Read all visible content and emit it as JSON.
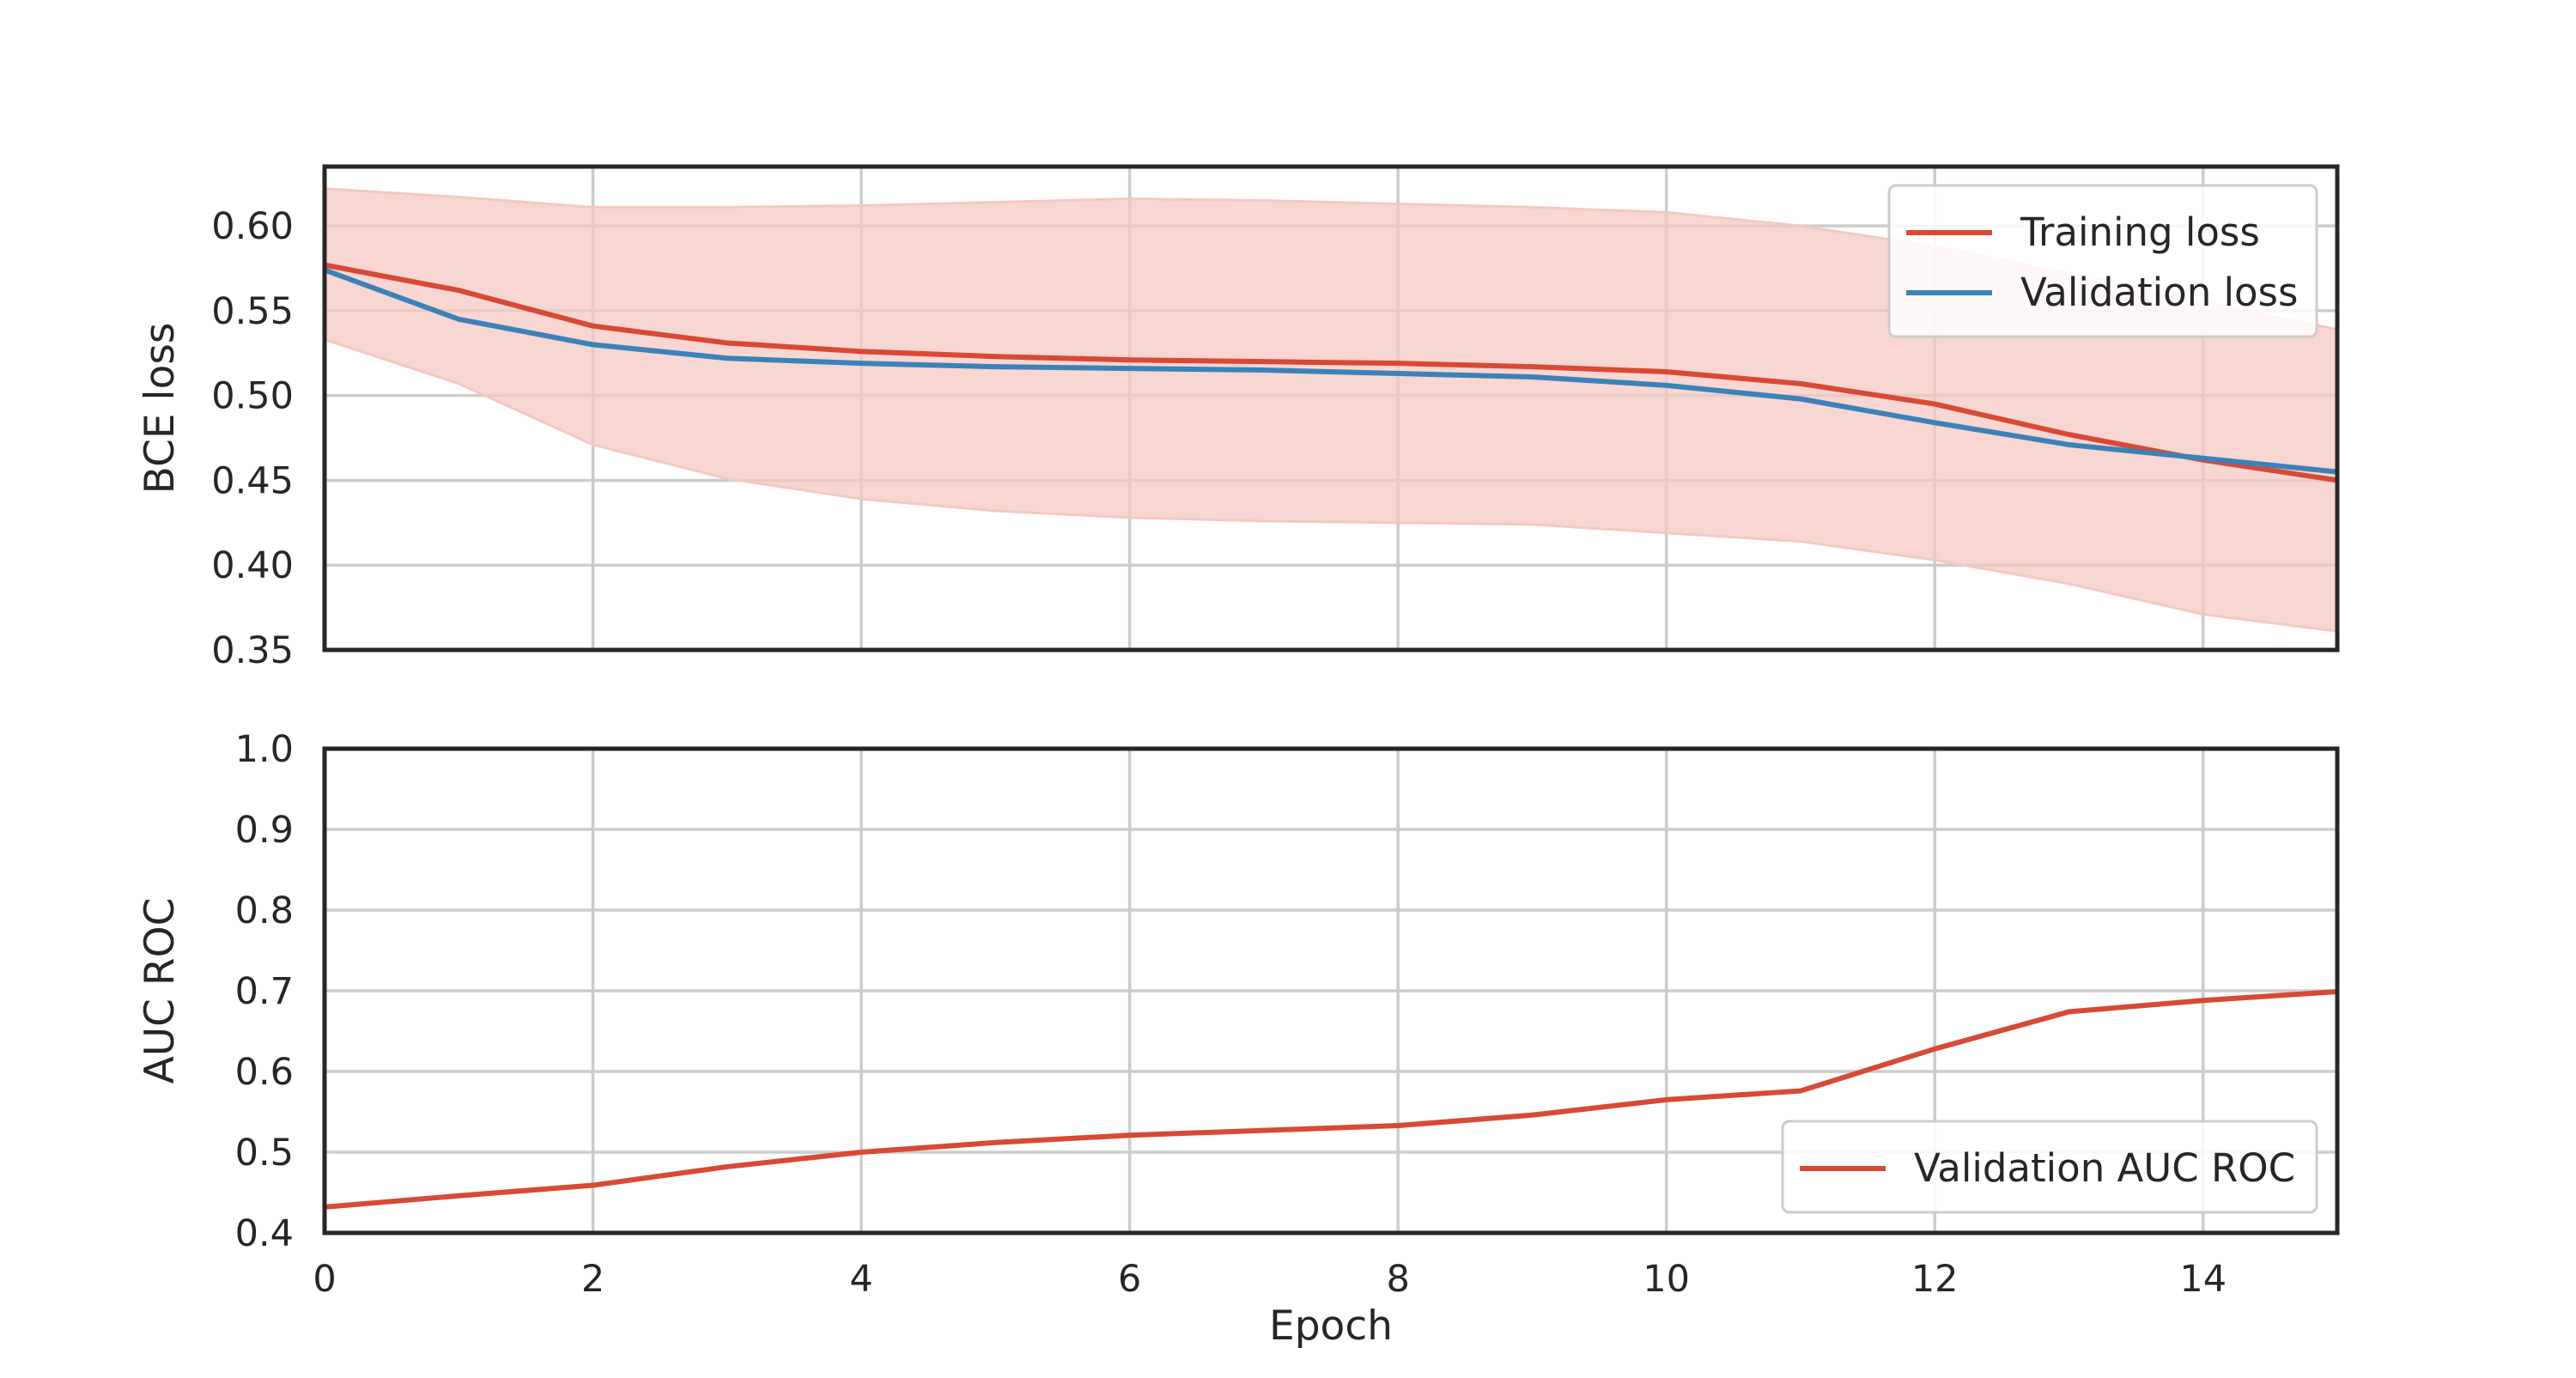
{
  "chart_data": [
    {
      "type": "line",
      "panel": "top",
      "title": "",
      "xlabel": "",
      "ylabel": "BCE loss",
      "xlim": [
        0,
        15
      ],
      "ylim": [
        0.35,
        0.635
      ],
      "xticks": [
        0,
        2,
        4,
        6,
        8,
        10,
        12,
        14
      ],
      "yticks": [
        "0.35",
        "0.40",
        "0.45",
        "0.50",
        "0.55",
        "0.60"
      ],
      "show_x_tick_labels": false,
      "grid": true,
      "legend": {
        "placement": "top-right"
      },
      "x": [
        0,
        1,
        2,
        3,
        4,
        5,
        6,
        7,
        8,
        9,
        10,
        11,
        12,
        13,
        14,
        15
      ],
      "series": [
        {
          "name": "Training loss",
          "color": "#d84936",
          "values": [
            0.577,
            0.562,
            0.541,
            0.531,
            0.526,
            0.523,
            0.521,
            0.52,
            0.519,
            0.517,
            0.514,
            0.507,
            0.495,
            0.477,
            0.462,
            0.45
          ],
          "band": {
            "upper": [
              0.622,
              0.617,
              0.611,
              0.611,
              0.612,
              0.614,
              0.616,
              0.615,
              0.613,
              0.611,
              0.608,
              0.6,
              0.588,
              0.572,
              0.555,
              0.539
            ],
            "lower": [
              0.533,
              0.507,
              0.471,
              0.451,
              0.439,
              0.432,
              0.428,
              0.426,
              0.425,
              0.424,
              0.419,
              0.414,
              0.403,
              0.389,
              0.371,
              0.361
            ],
            "color": "#f6c8c2"
          }
        },
        {
          "name": "Validation loss",
          "color": "#3a82b8",
          "values": [
            0.574,
            0.545,
            0.53,
            0.522,
            0.519,
            0.517,
            0.516,
            0.515,
            0.513,
            0.511,
            0.506,
            0.498,
            0.484,
            0.471,
            0.463,
            0.455
          ]
        }
      ]
    },
    {
      "type": "line",
      "panel": "bottom",
      "title": "",
      "xlabel": "Epoch",
      "ylabel": "AUC ROC",
      "xlim": [
        0,
        15
      ],
      "ylim": [
        0.4,
        1.0
      ],
      "xticks": [
        0,
        2,
        4,
        6,
        8,
        10,
        12,
        14
      ],
      "yticks": [
        "0.4",
        "0.5",
        "0.6",
        "0.7",
        "0.8",
        "0.9",
        "1.0"
      ],
      "show_x_tick_labels": true,
      "grid": true,
      "legend": {
        "placement": "bottom-right"
      },
      "x": [
        0,
        1,
        2,
        3,
        4,
        5,
        6,
        7,
        8,
        9,
        10,
        11,
        12,
        13,
        14,
        15
      ],
      "series": [
        {
          "name": "Validation AUC ROC",
          "color": "#d84936",
          "values": [
            0.432,
            0.446,
            0.459,
            0.482,
            0.5,
            0.512,
            0.521,
            0.527,
            0.533,
            0.546,
            0.565,
            0.576,
            0.628,
            0.674,
            0.688,
            0.699
          ]
        }
      ]
    }
  ]
}
